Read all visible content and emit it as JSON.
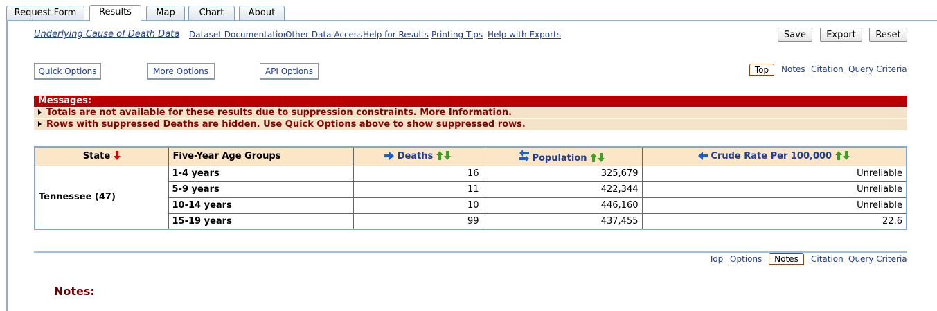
{
  "tabs": [
    "Request Form",
    "Results",
    "Map",
    "Chart",
    "About"
  ],
  "active_tab": "Results",
  "header_links": {
    "dataset": "Underlying Cause of Death Data",
    "documentation": "Dataset Documentation",
    "other_access": "Other Data Access",
    "help_results": "Help for Results",
    "printing": "Printing Tips",
    "help_exports": "Help with Exports"
  },
  "toolbar": {
    "save": "Save",
    "export": "Export",
    "reset": "Reset"
  },
  "options": {
    "quick": "Quick Options",
    "more": "More Options",
    "api": "API Options"
  },
  "nav_top": {
    "top": "Top",
    "notes": "Notes",
    "citation": "Citation",
    "query": "Query Criteria"
  },
  "messages": {
    "title": "Messages:",
    "msg1": "Totals are not available for these results due to suppression constraints.",
    "msg1_link": "More Information.",
    "msg2": "Rows with suppressed Deaths are hidden. Use Quick Options above to show suppressed rows."
  },
  "table": {
    "headers": {
      "state": "State",
      "age": "Five-Year Age Groups",
      "deaths": "Deaths",
      "population": "Population",
      "rate": "Crude Rate Per 100,000"
    },
    "state": "Tennessee (47)",
    "rows": [
      {
        "age": "1-4 years",
        "deaths": "16",
        "population": "325,679",
        "rate": "Unreliable"
      },
      {
        "age": "5-9 years",
        "deaths": "11",
        "population": "422,344",
        "rate": "Unreliable"
      },
      {
        "age": "10-14 years",
        "deaths": "10",
        "population": "446,160",
        "rate": "Unreliable"
      },
      {
        "age": "15-19 years",
        "deaths": "99",
        "population": "437,455",
        "rate": "22.6"
      }
    ]
  },
  "nav_bottom": {
    "top": "Top",
    "options": "Options",
    "notes": "Notes",
    "citation": "Citation",
    "query": "Query Criteria"
  },
  "notes_heading": "Notes:",
  "colors": {
    "message_red": "#b80000",
    "header_bg": "#fbe6c8",
    "link_blue": "#1f3f8f",
    "frame_blue": "#88aedd"
  }
}
